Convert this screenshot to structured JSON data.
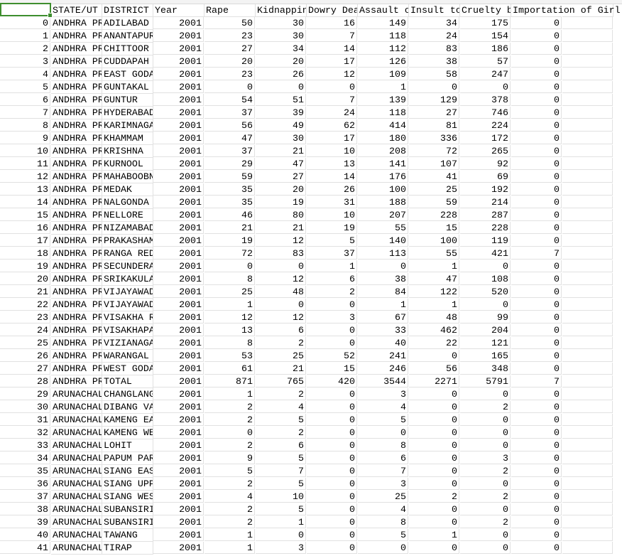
{
  "sheet": {
    "selected_cell": "A1",
    "accent_color": "#3e8e2e",
    "headers": [
      "",
      "STATE/UT",
      "DISTRICT",
      "Year",
      "Rape",
      "Kidnappin",
      "Dowry Dea",
      "Assault o",
      "Insult to",
      "Cruelty b",
      "Importation of Girl"
    ],
    "rows": [
      [
        "0",
        "ANDHRA PR",
        "ADILABAD",
        "2001",
        "50",
        "30",
        "16",
        "149",
        "34",
        "175",
        "0"
      ],
      [
        "1",
        "ANDHRA PR",
        "ANANTAPUR",
        "2001",
        "23",
        "30",
        "7",
        "118",
        "24",
        "154",
        "0"
      ],
      [
        "2",
        "ANDHRA PR",
        "CHITTOOR",
        "2001",
        "27",
        "34",
        "14",
        "112",
        "83",
        "186",
        "0"
      ],
      [
        "3",
        "ANDHRA PR",
        "CUDDAPAH",
        "2001",
        "20",
        "20",
        "17",
        "126",
        "38",
        "57",
        "0"
      ],
      [
        "4",
        "ANDHRA PR",
        "EAST GODA",
        "2001",
        "23",
        "26",
        "12",
        "109",
        "58",
        "247",
        "0"
      ],
      [
        "5",
        "ANDHRA PR",
        "GUNTAKAL",
        "2001",
        "0",
        "0",
        "0",
        "1",
        "0",
        "0",
        "0"
      ],
      [
        "6",
        "ANDHRA PR",
        "GUNTUR",
        "2001",
        "54",
        "51",
        "7",
        "139",
        "129",
        "378",
        "0"
      ],
      [
        "7",
        "ANDHRA PR",
        "HYDERABAD",
        "2001",
        "37",
        "39",
        "24",
        "118",
        "27",
        "746",
        "0"
      ],
      [
        "8",
        "ANDHRA PR",
        "KARIMNAGA",
        "2001",
        "56",
        "49",
        "62",
        "414",
        "81",
        "224",
        "0"
      ],
      [
        "9",
        "ANDHRA PR",
        "KHAMMAM",
        "2001",
        "47",
        "30",
        "17",
        "180",
        "336",
        "172",
        "0"
      ],
      [
        "10",
        "ANDHRA PR",
        "KRISHNA",
        "2001",
        "37",
        "21",
        "10",
        "208",
        "72",
        "265",
        "0"
      ],
      [
        "11",
        "ANDHRA PR",
        "KURNOOL",
        "2001",
        "29",
        "47",
        "13",
        "141",
        "107",
        "92",
        "0"
      ],
      [
        "12",
        "ANDHRA PR",
        "MAHABOOBN",
        "2001",
        "59",
        "27",
        "14",
        "176",
        "41",
        "69",
        "0"
      ],
      [
        "13",
        "ANDHRA PR",
        "MEDAK",
        "2001",
        "35",
        "20",
        "26",
        "100",
        "25",
        "192",
        "0"
      ],
      [
        "14",
        "ANDHRA PR",
        "NALGONDA",
        "2001",
        "35",
        "19",
        "31",
        "188",
        "59",
        "214",
        "0"
      ],
      [
        "15",
        "ANDHRA PR",
        "NELLORE",
        "2001",
        "46",
        "80",
        "10",
        "207",
        "228",
        "287",
        "0"
      ],
      [
        "16",
        "ANDHRA PR",
        "NIZAMABAD",
        "2001",
        "21",
        "21",
        "19",
        "55",
        "15",
        "228",
        "0"
      ],
      [
        "17",
        "ANDHRA PR",
        "PRAKASHAM",
        "2001",
        "19",
        "12",
        "5",
        "140",
        "100",
        "119",
        "0"
      ],
      [
        "18",
        "ANDHRA PR",
        "RANGA RED",
        "2001",
        "72",
        "83",
        "37",
        "113",
        "55",
        "421",
        "7"
      ],
      [
        "19",
        "ANDHRA PR",
        "SECUNDERA",
        "2001",
        "0",
        "0",
        "1",
        "0",
        "1",
        "0",
        "0"
      ],
      [
        "20",
        "ANDHRA PR",
        "SRIKAKULA",
        "2001",
        "8",
        "12",
        "6",
        "38",
        "47",
        "108",
        "0"
      ],
      [
        "21",
        "ANDHRA PR",
        "VIJAYAWAD",
        "2001",
        "25",
        "48",
        "2",
        "84",
        "122",
        "520",
        "0"
      ],
      [
        "22",
        "ANDHRA PR",
        "VIJAYAWAD",
        "2001",
        "1",
        "0",
        "0",
        "1",
        "1",
        "0",
        "0"
      ],
      [
        "23",
        "ANDHRA PR",
        "VISAKHA R",
        "2001",
        "12",
        "12",
        "3",
        "67",
        "48",
        "99",
        "0"
      ],
      [
        "24",
        "ANDHRA PR",
        "VISAKHAPA",
        "2001",
        "13",
        "6",
        "0",
        "33",
        "462",
        "204",
        "0"
      ],
      [
        "25",
        "ANDHRA PR",
        "VIZIANAGA",
        "2001",
        "8",
        "2",
        "0",
        "40",
        "22",
        "121",
        "0"
      ],
      [
        "26",
        "ANDHRA PR",
        "WARANGAL",
        "2001",
        "53",
        "25",
        "52",
        "241",
        "0",
        "165",
        "0"
      ],
      [
        "27",
        "ANDHRA PR",
        "WEST GODA",
        "2001",
        "61",
        "21",
        "15",
        "246",
        "56",
        "348",
        "0"
      ],
      [
        "28",
        "ANDHRA PR",
        "TOTAL",
        "2001",
        "871",
        "765",
        "420",
        "3544",
        "2271",
        "5791",
        "7"
      ],
      [
        "29",
        "ARUNACHAL",
        "CHANGLANG",
        "2001",
        "1",
        "2",
        "0",
        "3",
        "0",
        "0",
        "0"
      ],
      [
        "30",
        "ARUNACHAL",
        "DIBANG VA",
        "2001",
        "2",
        "4",
        "0",
        "4",
        "0",
        "2",
        "0"
      ],
      [
        "31",
        "ARUNACHAL",
        "KAMENG EA",
        "2001",
        "2",
        "5",
        "0",
        "5",
        "0",
        "0",
        "0"
      ],
      [
        "32",
        "ARUNACHAL",
        "KAMENG WE",
        "2001",
        "0",
        "2",
        "0",
        "0",
        "0",
        "0",
        "0"
      ],
      [
        "33",
        "ARUNACHAL",
        "LOHIT",
        "2001",
        "2",
        "6",
        "0",
        "8",
        "0",
        "0",
        "0"
      ],
      [
        "34",
        "ARUNACHAL",
        "PAPUM PAR",
        "2001",
        "9",
        "5",
        "0",
        "6",
        "0",
        "3",
        "0"
      ],
      [
        "35",
        "ARUNACHAL",
        "SIANG EAS",
        "2001",
        "5",
        "7",
        "0",
        "7",
        "0",
        "2",
        "0"
      ],
      [
        "36",
        "ARUNACHAL",
        "SIANG UPP",
        "2001",
        "2",
        "5",
        "0",
        "3",
        "0",
        "0",
        "0"
      ],
      [
        "37",
        "ARUNACHAL",
        "SIANG WES",
        "2001",
        "4",
        "10",
        "0",
        "25",
        "2",
        "2",
        "0"
      ],
      [
        "38",
        "ARUNACHAL",
        "SUBANSIRI",
        "2001",
        "2",
        "5",
        "0",
        "4",
        "0",
        "0",
        "0"
      ],
      [
        "39",
        "ARUNACHAL",
        "SUBANSIRI",
        "2001",
        "2",
        "1",
        "0",
        "8",
        "0",
        "2",
        "0"
      ],
      [
        "40",
        "ARUNACHAL",
        "TAWANG",
        "2001",
        "1",
        "0",
        "0",
        "5",
        "1",
        "0",
        "0"
      ],
      [
        "41",
        "ARUNACHAL",
        "TIRAP",
        "2001",
        "1",
        "3",
        "0",
        "0",
        "0",
        "0",
        "0"
      ]
    ]
  }
}
